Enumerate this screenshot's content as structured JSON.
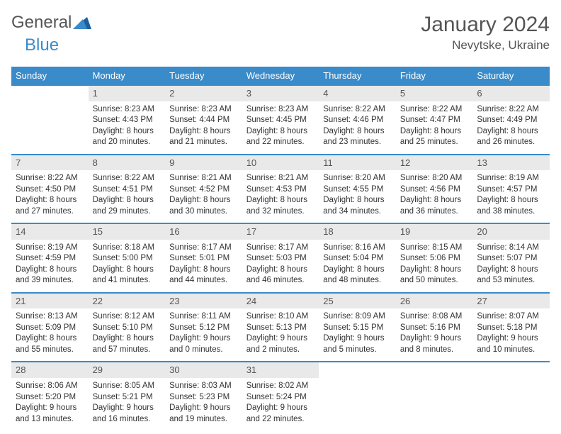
{
  "logo": {
    "word1": "General",
    "word2": "Blue"
  },
  "title": {
    "month": "January 2024",
    "location": "Nevytske, Ukraine"
  },
  "colors": {
    "accent": "#3a8bc9",
    "daynum_bg": "#e9e9e9",
    "text": "#333333",
    "header_text": "#555555"
  },
  "typography": {
    "title_fontsize": 30,
    "location_fontsize": 17,
    "dayhead_fontsize": 13,
    "cell_fontsize": 11.5
  },
  "dayHeaders": [
    "Sunday",
    "Monday",
    "Tuesday",
    "Wednesday",
    "Thursday",
    "Friday",
    "Saturday"
  ],
  "weeks": [
    [
      {
        "num": "",
        "sunrise": "",
        "sunset": "",
        "daylight": ""
      },
      {
        "num": "1",
        "sunrise": "Sunrise: 8:23 AM",
        "sunset": "Sunset: 4:43 PM",
        "daylight": "Daylight: 8 hours and 20 minutes."
      },
      {
        "num": "2",
        "sunrise": "Sunrise: 8:23 AM",
        "sunset": "Sunset: 4:44 PM",
        "daylight": "Daylight: 8 hours and 21 minutes."
      },
      {
        "num": "3",
        "sunrise": "Sunrise: 8:23 AM",
        "sunset": "Sunset: 4:45 PM",
        "daylight": "Daylight: 8 hours and 22 minutes."
      },
      {
        "num": "4",
        "sunrise": "Sunrise: 8:22 AM",
        "sunset": "Sunset: 4:46 PM",
        "daylight": "Daylight: 8 hours and 23 minutes."
      },
      {
        "num": "5",
        "sunrise": "Sunrise: 8:22 AM",
        "sunset": "Sunset: 4:47 PM",
        "daylight": "Daylight: 8 hours and 25 minutes."
      },
      {
        "num": "6",
        "sunrise": "Sunrise: 8:22 AM",
        "sunset": "Sunset: 4:49 PM",
        "daylight": "Daylight: 8 hours and 26 minutes."
      }
    ],
    [
      {
        "num": "7",
        "sunrise": "Sunrise: 8:22 AM",
        "sunset": "Sunset: 4:50 PM",
        "daylight": "Daylight: 8 hours and 27 minutes."
      },
      {
        "num": "8",
        "sunrise": "Sunrise: 8:22 AM",
        "sunset": "Sunset: 4:51 PM",
        "daylight": "Daylight: 8 hours and 29 minutes."
      },
      {
        "num": "9",
        "sunrise": "Sunrise: 8:21 AM",
        "sunset": "Sunset: 4:52 PM",
        "daylight": "Daylight: 8 hours and 30 minutes."
      },
      {
        "num": "10",
        "sunrise": "Sunrise: 8:21 AM",
        "sunset": "Sunset: 4:53 PM",
        "daylight": "Daylight: 8 hours and 32 minutes."
      },
      {
        "num": "11",
        "sunrise": "Sunrise: 8:20 AM",
        "sunset": "Sunset: 4:55 PM",
        "daylight": "Daylight: 8 hours and 34 minutes."
      },
      {
        "num": "12",
        "sunrise": "Sunrise: 8:20 AM",
        "sunset": "Sunset: 4:56 PM",
        "daylight": "Daylight: 8 hours and 36 minutes."
      },
      {
        "num": "13",
        "sunrise": "Sunrise: 8:19 AM",
        "sunset": "Sunset: 4:57 PM",
        "daylight": "Daylight: 8 hours and 38 minutes."
      }
    ],
    [
      {
        "num": "14",
        "sunrise": "Sunrise: 8:19 AM",
        "sunset": "Sunset: 4:59 PM",
        "daylight": "Daylight: 8 hours and 39 minutes."
      },
      {
        "num": "15",
        "sunrise": "Sunrise: 8:18 AM",
        "sunset": "Sunset: 5:00 PM",
        "daylight": "Daylight: 8 hours and 41 minutes."
      },
      {
        "num": "16",
        "sunrise": "Sunrise: 8:17 AM",
        "sunset": "Sunset: 5:01 PM",
        "daylight": "Daylight: 8 hours and 44 minutes."
      },
      {
        "num": "17",
        "sunrise": "Sunrise: 8:17 AM",
        "sunset": "Sunset: 5:03 PM",
        "daylight": "Daylight: 8 hours and 46 minutes."
      },
      {
        "num": "18",
        "sunrise": "Sunrise: 8:16 AM",
        "sunset": "Sunset: 5:04 PM",
        "daylight": "Daylight: 8 hours and 48 minutes."
      },
      {
        "num": "19",
        "sunrise": "Sunrise: 8:15 AM",
        "sunset": "Sunset: 5:06 PM",
        "daylight": "Daylight: 8 hours and 50 minutes."
      },
      {
        "num": "20",
        "sunrise": "Sunrise: 8:14 AM",
        "sunset": "Sunset: 5:07 PM",
        "daylight": "Daylight: 8 hours and 53 minutes."
      }
    ],
    [
      {
        "num": "21",
        "sunrise": "Sunrise: 8:13 AM",
        "sunset": "Sunset: 5:09 PM",
        "daylight": "Daylight: 8 hours and 55 minutes."
      },
      {
        "num": "22",
        "sunrise": "Sunrise: 8:12 AM",
        "sunset": "Sunset: 5:10 PM",
        "daylight": "Daylight: 8 hours and 57 minutes."
      },
      {
        "num": "23",
        "sunrise": "Sunrise: 8:11 AM",
        "sunset": "Sunset: 5:12 PM",
        "daylight": "Daylight: 9 hours and 0 minutes."
      },
      {
        "num": "24",
        "sunrise": "Sunrise: 8:10 AM",
        "sunset": "Sunset: 5:13 PM",
        "daylight": "Daylight: 9 hours and 2 minutes."
      },
      {
        "num": "25",
        "sunrise": "Sunrise: 8:09 AM",
        "sunset": "Sunset: 5:15 PM",
        "daylight": "Daylight: 9 hours and 5 minutes."
      },
      {
        "num": "26",
        "sunrise": "Sunrise: 8:08 AM",
        "sunset": "Sunset: 5:16 PM",
        "daylight": "Daylight: 9 hours and 8 minutes."
      },
      {
        "num": "27",
        "sunrise": "Sunrise: 8:07 AM",
        "sunset": "Sunset: 5:18 PM",
        "daylight": "Daylight: 9 hours and 10 minutes."
      }
    ],
    [
      {
        "num": "28",
        "sunrise": "Sunrise: 8:06 AM",
        "sunset": "Sunset: 5:20 PM",
        "daylight": "Daylight: 9 hours and 13 minutes."
      },
      {
        "num": "29",
        "sunrise": "Sunrise: 8:05 AM",
        "sunset": "Sunset: 5:21 PM",
        "daylight": "Daylight: 9 hours and 16 minutes."
      },
      {
        "num": "30",
        "sunrise": "Sunrise: 8:03 AM",
        "sunset": "Sunset: 5:23 PM",
        "daylight": "Daylight: 9 hours and 19 minutes."
      },
      {
        "num": "31",
        "sunrise": "Sunrise: 8:02 AM",
        "sunset": "Sunset: 5:24 PM",
        "daylight": "Daylight: 9 hours and 22 minutes."
      },
      {
        "num": "",
        "sunrise": "",
        "sunset": "",
        "daylight": ""
      },
      {
        "num": "",
        "sunrise": "",
        "sunset": "",
        "daylight": ""
      },
      {
        "num": "",
        "sunrise": "",
        "sunset": "",
        "daylight": ""
      }
    ]
  ]
}
